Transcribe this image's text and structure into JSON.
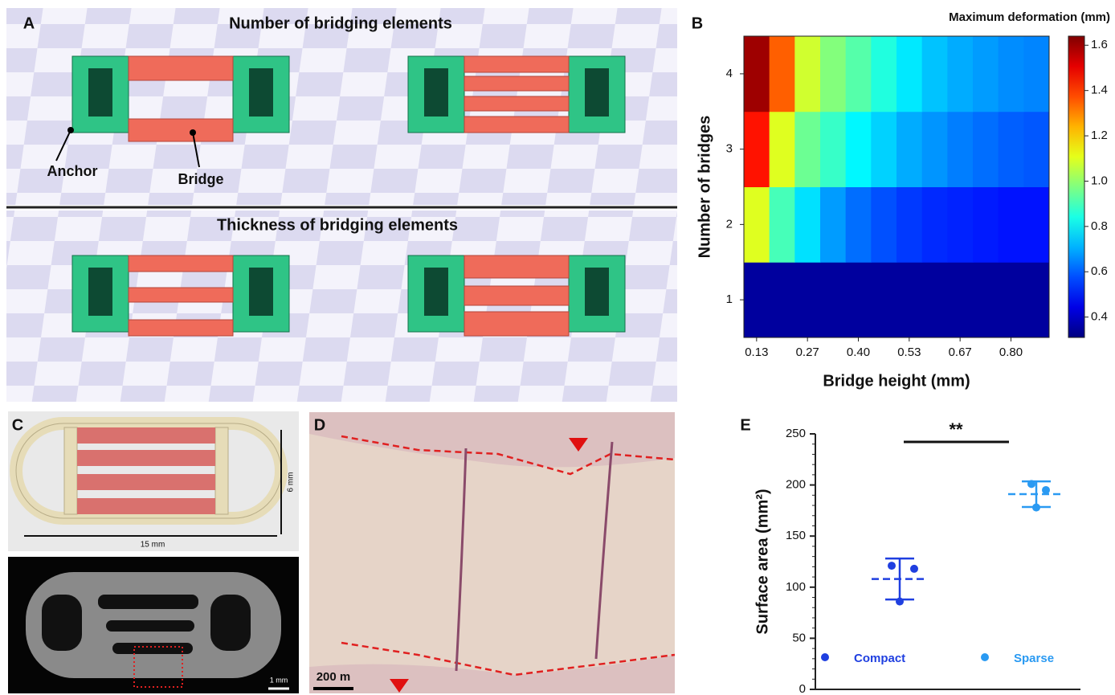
{
  "panels": {
    "a": {
      "label": "A",
      "title_top": "Number of bridging elements",
      "title_bottom": "Thickness of bridging elements",
      "anchor": "Anchor",
      "bridge": "Bridge"
    },
    "b": {
      "label": "B"
    },
    "c": {
      "label": "C",
      "width": "15 mm",
      "height": "6 mm",
      "scale": "1 mm"
    },
    "d": {
      "label": "D",
      "scale": "200 m"
    },
    "e": {
      "label": "E",
      "significance": "**"
    }
  },
  "chart_data": [
    {
      "type": "heatmap",
      "title": "Maximum deformation (mm)",
      "x_label": "Bridge height (mm)",
      "y_label": "Number of bridges",
      "categories": [
        "0.13",
        null,
        "0.27",
        null,
        "0.40",
        null,
        "0.53",
        null,
        "0.67",
        null,
        "0.80",
        null
      ],
      "y_categories": [
        "1",
        "2",
        "3",
        "4"
      ],
      "values": [
        [
          0.35,
          0.35,
          0.35,
          0.35,
          0.35,
          0.35,
          0.35,
          0.35,
          0.35,
          0.35,
          0.35,
          0.35
        ],
        [
          1.1,
          0.9,
          0.77,
          0.68,
          0.62,
          0.58,
          0.55,
          0.53,
          0.52,
          0.51,
          0.5,
          0.5
        ],
        [
          1.45,
          1.1,
          0.95,
          0.88,
          0.8,
          0.75,
          0.7,
          0.67,
          0.64,
          0.62,
          0.6,
          0.59
        ],
        [
          1.6,
          1.35,
          1.08,
          0.98,
          0.92,
          0.85,
          0.78,
          0.73,
          0.7,
          0.68,
          0.66,
          0.65
        ]
      ],
      "colormap": "jet",
      "zlim": [
        0.31,
        1.64
      ],
      "zticks": [
        0.4,
        0.6,
        0.8,
        {
          "value": 1,
          "label": "1.0"
        },
        1.2,
        1.4,
        1.6
      ]
    },
    {
      "type": "dot_plot",
      "y_label": "Surface area (mm²)",
      "series": [
        {
          "name": "Compact",
          "color": "#1f3fe0",
          "values": [
            121,
            118,
            86
          ],
          "mean": 108,
          "error": 20
        },
        {
          "name": "Sparse",
          "color": "#2a9af2",
          "values": [
            201,
            195,
            178
          ],
          "mean": 191,
          "error": 12.5
        }
      ],
      "ylim": [
        0,
        250
      ],
      "yticks": [
        0,
        50,
        100,
        150,
        200,
        250
      ]
    }
  ]
}
